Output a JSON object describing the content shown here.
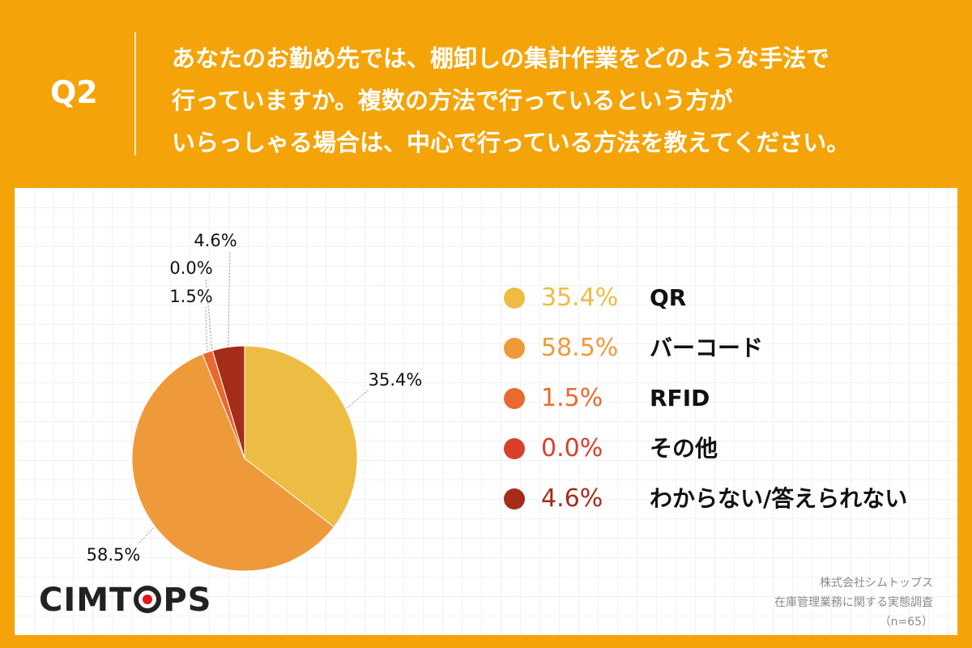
{
  "question": {
    "label": "Q2",
    "lines": [
      "あなたのお勤め先では、棚卸しの集計作業をどのような手法で",
      "行っていますか。複数の方法で行っているという方が",
      "いらっしゃる場合は、中心で行っている方法を教えてください。"
    ]
  },
  "chart_data": {
    "type": "pie",
    "title": "",
    "start_angle_deg": 0,
    "direction": "clockwise",
    "slices": [
      {
        "name": "QR",
        "value": 35.4,
        "label": "35.4%",
        "color": "#EDBC42"
      },
      {
        "name": "バーコード",
        "value": 58.5,
        "label": "58.5%",
        "color": "#EF9A3A"
      },
      {
        "name": "RFID",
        "value": 1.5,
        "label": "1.5%",
        "color": "#E86A2E"
      },
      {
        "name": "その他",
        "value": 0.0,
        "label": "0.0%",
        "color": "#D8402A"
      },
      {
        "name": "わからない/答えられない",
        "value": 4.6,
        "label": "4.6%",
        "color": "#A52C19"
      }
    ],
    "legend_placement": "right"
  },
  "footer": {
    "logo_text": "CIMTOPS",
    "credit_lines": [
      "株式会社シムトップス",
      "在庫管理業務に関する実態調査",
      "（n=65）"
    ]
  }
}
